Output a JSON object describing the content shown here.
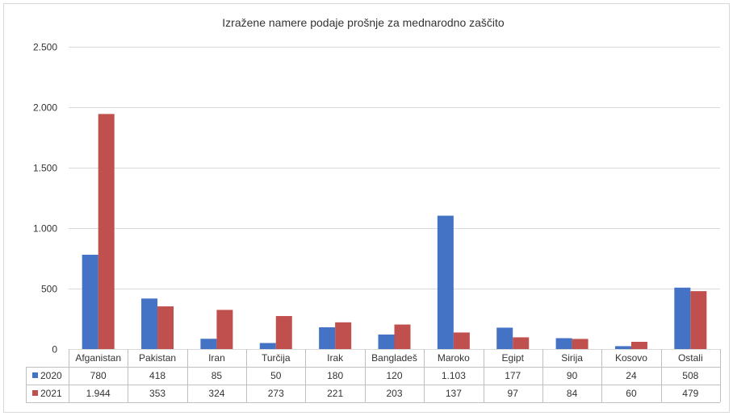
{
  "chart_data": {
    "type": "bar",
    "title": "Izražene namere podaje prošnje za mednarodno zaščito",
    "categories": [
      "Afganistan",
      "Pakistan",
      "Iran",
      "Turčija",
      "Irak",
      "Bangladeš",
      "Maroko",
      "Egipt",
      "Sirija",
      "Kosovo",
      "Ostali"
    ],
    "series": [
      {
        "name": "2020",
        "color": "#4472C4",
        "values": [
          780,
          418,
          85,
          50,
          180,
          120,
          1103,
          177,
          90,
          24,
          508
        ],
        "labels": [
          "780",
          "418",
          "85",
          "50",
          "180",
          "120",
          "1.103",
          "177",
          "90",
          "24",
          "508"
        ]
      },
      {
        "name": "2021",
        "color": "#C0504D",
        "values": [
          1944,
          353,
          324,
          273,
          221,
          203,
          137,
          97,
          84,
          60,
          479
        ],
        "labels": [
          "1.944",
          "353",
          "324",
          "273",
          "221",
          "203",
          "137",
          "97",
          "84",
          "60",
          "479"
        ]
      }
    ],
    "y_ticks": [
      {
        "value": 0,
        "label": "0"
      },
      {
        "value": 500,
        "label": "500"
      },
      {
        "value": 1000,
        "label": "1.000"
      },
      {
        "value": 1500,
        "label": "1.500"
      },
      {
        "value": 2000,
        "label": "2.000"
      },
      {
        "value": 2500,
        "label": "2.500"
      }
    ],
    "ylim": [
      0,
      2500
    ],
    "grid": true,
    "legend": "data-table"
  }
}
